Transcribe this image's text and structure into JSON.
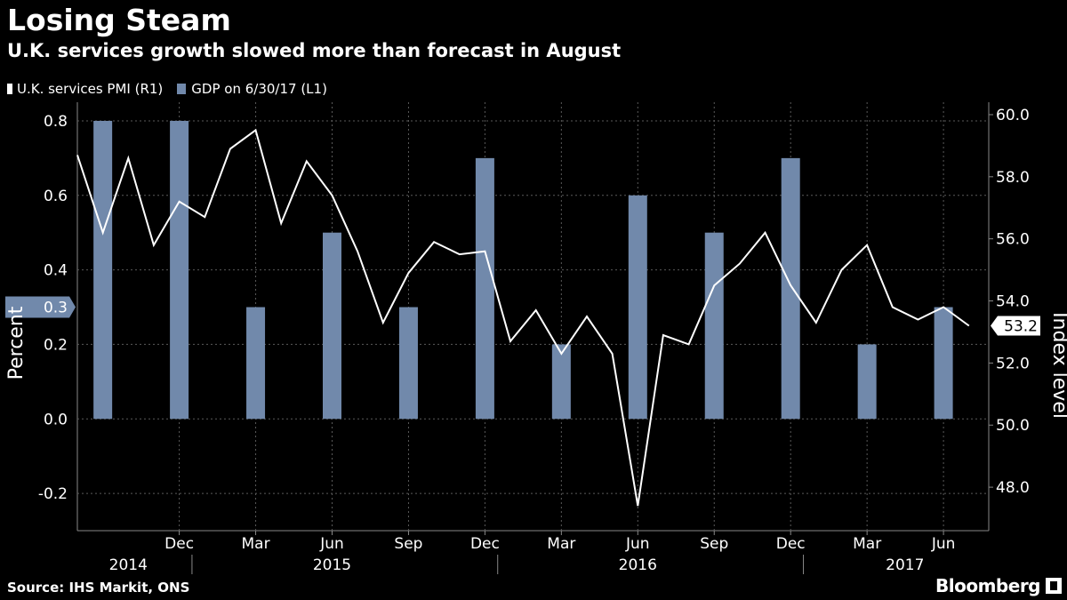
{
  "header": {
    "title": "Losing Steam",
    "subtitle": "U.K. services growth slowed more than forecast in August"
  },
  "legend": {
    "pmi_label": "U.K. services PMI (R1)",
    "gdp_label": "GDP on 6/30/17 (L1)"
  },
  "footer": {
    "source": "Source: IHS Markit, ONS",
    "brand": "Bloomberg"
  },
  "colors": {
    "background": "#000000",
    "bar": "#7189ab",
    "line": "#ffffff",
    "grid": "#5a5a5a"
  },
  "chart_data": {
    "type": "bar",
    "left_axis": {
      "label": "Percent",
      "ylim": [
        -0.3,
        0.85
      ],
      "ticks": [
        "0.8",
        "0.6",
        "0.4",
        "0.2",
        "0.0",
        "-0.2"
      ],
      "current_value_label": "0.3"
    },
    "right_axis": {
      "label": "Index level",
      "ylim": [
        46.6,
        60.4
      ],
      "ticks": [
        "60.0",
        "58.0",
        "56.0",
        "54.0",
        "52.0",
        "50.0",
        "48.0"
      ],
      "current_value_label": "53.2"
    },
    "x_ticks": [
      {
        "label": "Dec",
        "date": "2014-12"
      },
      {
        "label": "Mar",
        "date": "2015-03"
      },
      {
        "label": "Jun",
        "date": "2015-06"
      },
      {
        "label": "Sep",
        "date": "2015-09"
      },
      {
        "label": "Dec",
        "date": "2015-12"
      },
      {
        "label": "Mar",
        "date": "2016-03"
      },
      {
        "label": "Jun",
        "date": "2016-06"
      },
      {
        "label": "Sep",
        "date": "2016-09"
      },
      {
        "label": "Dec",
        "date": "2016-12"
      },
      {
        "label": "Mar",
        "date": "2017-03"
      },
      {
        "label": "Jun",
        "date": "2017-06"
      }
    ],
    "years": [
      "2014",
      "2015",
      "2016",
      "2017"
    ],
    "grid": true,
    "gdp_series": {
      "name": "GDP on 6/30/17 (L1)",
      "points": [
        {
          "date": "2014-09",
          "value": 0.8
        },
        {
          "date": "2014-12",
          "value": 0.8
        },
        {
          "date": "2015-03",
          "value": 0.3
        },
        {
          "date": "2015-06",
          "value": 0.5
        },
        {
          "date": "2015-09",
          "value": 0.3
        },
        {
          "date": "2015-12",
          "value": 0.7
        },
        {
          "date": "2016-03",
          "value": 0.2
        },
        {
          "date": "2016-06",
          "value": 0.6
        },
        {
          "date": "2016-09",
          "value": 0.5
        },
        {
          "date": "2016-12",
          "value": 0.7
        },
        {
          "date": "2017-03",
          "value": 0.2
        },
        {
          "date": "2017-06",
          "value": 0.3
        }
      ]
    },
    "pmi_series": {
      "name": "U.K. services PMI (R1)",
      "points": [
        {
          "date": "2014-08",
          "value": 58.7
        },
        {
          "date": "2014-09",
          "value": 56.2
        },
        {
          "date": "2014-10",
          "value": 58.6
        },
        {
          "date": "2014-11",
          "value": 55.8
        },
        {
          "date": "2014-12",
          "value": 57.2
        },
        {
          "date": "2015-01",
          "value": 56.7
        },
        {
          "date": "2015-02",
          "value": 58.9
        },
        {
          "date": "2015-03",
          "value": 59.5
        },
        {
          "date": "2015-04",
          "value": 56.5
        },
        {
          "date": "2015-05",
          "value": 58.5
        },
        {
          "date": "2015-06",
          "value": 57.4
        },
        {
          "date": "2015-07",
          "value": 55.6
        },
        {
          "date": "2015-08",
          "value": 53.3
        },
        {
          "date": "2015-09",
          "value": 54.9
        },
        {
          "date": "2015-10",
          "value": 55.9
        },
        {
          "date": "2015-11",
          "value": 55.5
        },
        {
          "date": "2015-12",
          "value": 55.6
        },
        {
          "date": "2016-01",
          "value": 52.7
        },
        {
          "date": "2016-02",
          "value": 53.7
        },
        {
          "date": "2016-03",
          "value": 52.3
        },
        {
          "date": "2016-04",
          "value": 53.5
        },
        {
          "date": "2016-05",
          "value": 52.3
        },
        {
          "date": "2016-06",
          "value": 47.4
        },
        {
          "date": "2016-07",
          "value": 52.9
        },
        {
          "date": "2016-08",
          "value": 52.6
        },
        {
          "date": "2016-09",
          "value": 54.5
        },
        {
          "date": "2016-10",
          "value": 55.2
        },
        {
          "date": "2016-11",
          "value": 56.2
        },
        {
          "date": "2016-12",
          "value": 54.5
        },
        {
          "date": "2017-01",
          "value": 53.3
        },
        {
          "date": "2017-02",
          "value": 55.0
        },
        {
          "date": "2017-03",
          "value": 55.8
        },
        {
          "date": "2017-04",
          "value": 53.8
        },
        {
          "date": "2017-05",
          "value": 53.4
        },
        {
          "date": "2017-06",
          "value": 53.8
        },
        {
          "date": "2017-07",
          "value": 53.2
        }
      ]
    }
  }
}
